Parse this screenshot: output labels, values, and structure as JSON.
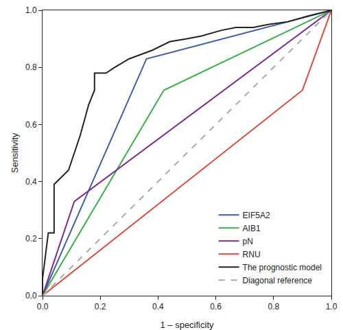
{
  "chart_data": {
    "type": "line",
    "x_label": "1 – specificity",
    "y_label": "Sensitivity",
    "xlim": [
      0,
      1
    ],
    "ylim": [
      0,
      1
    ],
    "xticks": [
      {
        "value": 0,
        "label": "0.0"
      },
      0.2,
      0.4,
      0.6,
      0.8,
      {
        "value": 1,
        "label": "1.0"
      }
    ],
    "yticks": [
      {
        "value": 0,
        "label": "0.0"
      },
      0.2,
      0.4,
      0.6,
      0.8,
      {
        "value": 1,
        "label": "1.0"
      }
    ],
    "grid": false,
    "legend": "lower right",
    "series": [
      {
        "name": "EIF5A2",
        "color": "#3a5ca8",
        "line_style": "solid",
        "x": [
          0,
          0.36,
          1
        ],
        "values": [
          0,
          0.83,
          1
        ]
      },
      {
        "name": "AIB1",
        "color": "#3aae4a",
        "line_style": "solid",
        "x": [
          0,
          0.42,
          1
        ],
        "values": [
          0,
          0.72,
          1
        ]
      },
      {
        "name": "pN",
        "color": "#7b2d8e",
        "line_style": "solid",
        "x": [
          0,
          0.11,
          1
        ],
        "values": [
          0,
          0.33,
          1
        ]
      },
      {
        "name": "RNU",
        "color": "#e0463c",
        "line_style": "solid",
        "x": [
          0,
          0.9,
          1
        ],
        "values": [
          0,
          0.72,
          1
        ]
      },
      {
        "name": "The prognostic model",
        "color": "#222222",
        "line_style": "solid",
        "x": [
          0,
          0,
          0.02,
          0.04,
          0.04,
          0.07,
          0.09,
          0.11,
          0.13,
          0.16,
          0.18,
          0.18,
          0.22,
          0.25,
          0.3,
          0.38,
          0.44,
          0.5,
          0.55,
          0.62,
          0.67,
          0.73,
          0.78,
          0.85,
          0.92,
          1
        ],
        "values": [
          0,
          0.06,
          0.22,
          0.22,
          0.39,
          0.42,
          0.44,
          0.5,
          0.56,
          0.67,
          0.72,
          0.78,
          0.78,
          0.8,
          0.83,
          0.86,
          0.89,
          0.9,
          0.91,
          0.93,
          0.94,
          0.94,
          0.95,
          0.96,
          0.98,
          1
        ]
      },
      {
        "name": "Diagonal reference",
        "color": "#aaaaaa",
        "line_style": "dashed",
        "x": [
          0,
          1
        ],
        "values": [
          0,
          1
        ]
      }
    ]
  }
}
